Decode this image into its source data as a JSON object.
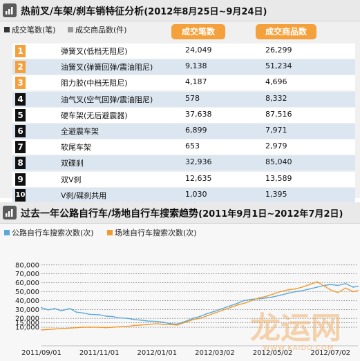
{
  "top": {
    "title": "热前叉/车架/刹车销特征分析",
    "title_date": "(2012年8月25日~9月24日)",
    "legend": [
      {
        "label": "成交笔数(笔)",
        "color": "#333333"
      },
      {
        "label": "成交商品数(件)",
        "color": "#999999"
      }
    ],
    "col_a_header": "成交笔数",
    "col_b_header": "成交商品数",
    "rows": [
      {
        "rank": "1",
        "name": "弹簧叉(低档无阻尼)",
        "deals": "24,049",
        "items": "26,299"
      },
      {
        "rank": "2",
        "name": "油簧叉(弹簧回弹/震油阻尼)",
        "deals": "9,138",
        "items": "51,234"
      },
      {
        "rank": "3",
        "name": "阻力胶(中档无阻尼)",
        "deals": "4,187",
        "items": "4,696"
      },
      {
        "rank": "4",
        "name": "油气叉(空气回弹/震油阻尼)",
        "deals": "578",
        "items": "8,332"
      },
      {
        "rank": "5",
        "name": "硬车架(无后避震器)",
        "deals": "37,638",
        "items": "87,516"
      },
      {
        "rank": "6",
        "name": "全避震车架",
        "deals": "6,899",
        "items": "7,971"
      },
      {
        "rank": "7",
        "name": "软尾车架",
        "deals": "653",
        "items": "2,979"
      },
      {
        "rank": "8",
        "name": "双碟刹",
        "deals": "32,936",
        "items": "85,040"
      },
      {
        "rank": "9",
        "name": "双V刹",
        "deals": "12,635",
        "items": "13,589"
      },
      {
        "rank": "10",
        "name": "V刹/碟刹共用",
        "deals": "1,030",
        "items": "1,395"
      }
    ],
    "badge_colors": {
      "top3": "#f4a13c",
      "default": "#111111"
    }
  },
  "bottom": {
    "title": "过去一年公路自行车/场地自行车搜索趋势",
    "title_date": "(2011年9月1日~2012年7月2日)"
  },
  "watermark": {
    "text": "龙运网",
    "url": "WWW.KAIDO.COM"
  },
  "chart_data": {
    "type": "line",
    "title": "过去一年公路自行车/场地自行车搜索趋势(2011年9月1日~2012年7月2日)",
    "x_start": "2011-09-01",
    "x_end": "2012-07-31",
    "x_ticks": [
      "2011/09/01",
      "2011/11/01",
      "2012/01/01",
      "2012/03/02",
      "2012/05/02",
      "2012/07/02"
    ],
    "y_ticks": [
      "80,000",
      "70,000",
      "60,000",
      "50,000",
      "40,000",
      "30,000",
      "20,000",
      "15,000",
      "10,000"
    ],
    "ylim": [
      0,
      80000
    ],
    "grid": "dotted horizontal",
    "legend_position": "top-left",
    "series": [
      {
        "name": "公路自行车搜索次数(次)",
        "color": "#5aa9dc",
        "points": [
          [
            "2011-09-01",
            32000
          ],
          [
            "2011-09-08",
            29500
          ],
          [
            "2011-09-15",
            31000
          ],
          [
            "2011-09-22",
            28500
          ],
          [
            "2011-10-01",
            31000
          ],
          [
            "2011-10-08",
            27000
          ],
          [
            "2011-10-15",
            26000
          ],
          [
            "2011-10-22",
            24500
          ],
          [
            "2011-11-01",
            24000
          ],
          [
            "2011-11-08",
            22500
          ],
          [
            "2011-11-15",
            22000
          ],
          [
            "2011-11-22",
            20500
          ],
          [
            "2011-12-01",
            20000
          ],
          [
            "2011-12-08",
            18500
          ],
          [
            "2011-12-15",
            18000
          ],
          [
            "2011-12-22",
            17000
          ],
          [
            "2012-01-01",
            16500
          ],
          [
            "2012-01-08",
            15500
          ],
          [
            "2012-01-15",
            14000
          ],
          [
            "2012-01-22",
            13500
          ],
          [
            "2012-02-01",
            17000
          ],
          [
            "2012-02-08",
            20000
          ],
          [
            "2012-02-15",
            22000
          ],
          [
            "2012-02-22",
            25000
          ],
          [
            "2012-03-02",
            28000
          ],
          [
            "2012-03-10",
            31000
          ],
          [
            "2012-03-18",
            34000
          ],
          [
            "2012-03-26",
            37000
          ],
          [
            "2012-04-02",
            40000
          ],
          [
            "2012-04-10",
            41500
          ],
          [
            "2012-04-18",
            42000
          ],
          [
            "2012-04-26",
            43000
          ],
          [
            "2012-05-02",
            44000
          ],
          [
            "2012-05-10",
            46000
          ],
          [
            "2012-05-18",
            48000
          ],
          [
            "2012-05-26",
            50000
          ],
          [
            "2012-06-02",
            51000
          ],
          [
            "2012-06-10",
            53000
          ],
          [
            "2012-06-18",
            55000
          ],
          [
            "2012-06-26",
            57000
          ],
          [
            "2012-07-02",
            58000
          ],
          [
            "2012-07-10",
            57000
          ],
          [
            "2012-07-18",
            59000
          ],
          [
            "2012-07-26",
            55000
          ],
          [
            "2012-07-31",
            56000
          ]
        ]
      },
      {
        "name": "场地自行车搜索次数(次)",
        "color": "#f39a2c",
        "points": [
          [
            "2011-09-01",
            7000
          ],
          [
            "2011-09-08",
            7500
          ],
          [
            "2011-09-15",
            8000
          ],
          [
            "2011-09-22",
            8500
          ],
          [
            "2011-10-01",
            9000
          ],
          [
            "2011-10-08",
            9500
          ],
          [
            "2011-10-15",
            10000
          ],
          [
            "2011-10-22",
            10000
          ],
          [
            "2011-11-01",
            10000
          ],
          [
            "2011-11-08",
            9500
          ],
          [
            "2011-11-15",
            10000
          ],
          [
            "2011-11-22",
            10500
          ],
          [
            "2011-12-01",
            11000
          ],
          [
            "2011-12-08",
            12000
          ],
          [
            "2011-12-15",
            12500
          ],
          [
            "2011-12-22",
            13000
          ],
          [
            "2012-01-01",
            14000
          ],
          [
            "2012-01-08",
            13000
          ],
          [
            "2012-01-15",
            13000
          ],
          [
            "2012-01-22",
            12500
          ],
          [
            "2012-02-01",
            16000
          ],
          [
            "2012-02-08",
            18500
          ],
          [
            "2012-02-15",
            20000
          ],
          [
            "2012-02-22",
            22500
          ],
          [
            "2012-03-02",
            26000
          ],
          [
            "2012-03-10",
            29000
          ],
          [
            "2012-03-18",
            32000
          ],
          [
            "2012-03-26",
            35000
          ],
          [
            "2012-04-02",
            37000
          ],
          [
            "2012-04-10",
            40000
          ],
          [
            "2012-04-18",
            43000
          ],
          [
            "2012-04-26",
            45000
          ],
          [
            "2012-05-02",
            47000
          ],
          [
            "2012-05-10",
            50000
          ],
          [
            "2012-05-18",
            52000
          ],
          [
            "2012-05-26",
            53000
          ],
          [
            "2012-06-02",
            55000
          ],
          [
            "2012-06-10",
            58000
          ],
          [
            "2012-06-18",
            61000
          ],
          [
            "2012-06-26",
            56000
          ],
          [
            "2012-07-02",
            52000
          ],
          [
            "2012-07-10",
            49000
          ],
          [
            "2012-07-18",
            54000
          ],
          [
            "2012-07-26",
            50000
          ],
          [
            "2012-07-31",
            51000
          ]
        ]
      }
    ]
  }
}
